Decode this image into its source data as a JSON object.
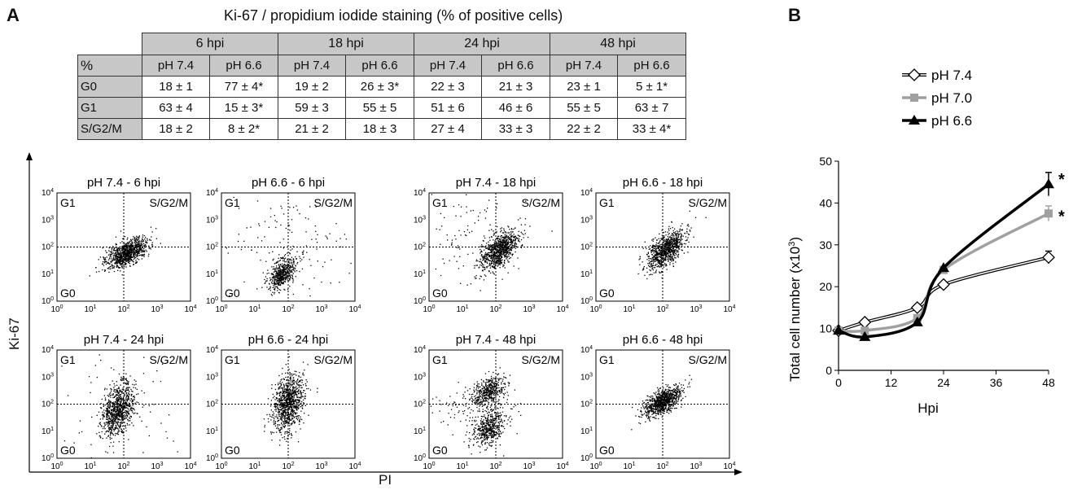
{
  "panel_a": {
    "letter": "A",
    "table": {
      "title": "Ki-67 / propidium iodide staining (% of positive cells)",
      "corner": "%",
      "groups": [
        "6 hpi",
        "18 hpi",
        "24 hpi",
        "48 hpi"
      ],
      "subheaders": [
        "pH 7.4",
        "pH 6.6",
        "pH 7.4",
        "pH 6.6",
        "pH 7.4",
        "pH 6.6",
        "pH 7.4",
        "pH 6.6"
      ],
      "rows": [
        {
          "label": "G0",
          "cells": [
            "18 ± 1",
            "77 ± 4*",
            "19 ± 2",
            "26 ± 3*",
            "22 ± 3",
            "21 ± 3",
            "23 ± 1",
            "5 ± 1*"
          ]
        },
        {
          "label": "G1",
          "cells": [
            "63 ± 4",
            "15 ± 3*",
            "59 ± 3",
            "55 ± 5",
            "51 ± 6",
            "46 ± 6",
            "55 ± 5",
            "63 ± 7"
          ]
        },
        {
          "label": "S/G2/M",
          "cells": [
            "18 ± 2",
            "8 ± 2*",
            "21 ± 2",
            "18 ± 3",
            "27 ± 4",
            "33 ± 3",
            "22 ± 2",
            "33 ± 4*"
          ]
        }
      ]
    },
    "flow": {
      "y_label": "Ki-67",
      "x_label": "PI",
      "quadrant_labels": {
        "tl": "G1",
        "tr": "S/G2/M",
        "bl": "G0"
      },
      "tick_base": "10",
      "tick_exponents": [
        "0",
        "1",
        "2",
        "3",
        "4"
      ],
      "plots": [
        {
          "title": "pH 7.4 - 6 hpi"
        },
        {
          "title": "pH 6.6 - 6 hpi"
        },
        {
          "title": "pH 7.4 - 18 hpi"
        },
        {
          "title": "pH 6.6 - 18 hpi"
        },
        {
          "title": "pH 7.4 - 24 hpi"
        },
        {
          "title": "pH 6.6 - 24 hpi"
        },
        {
          "title": "pH 7.4 - 48 hpi"
        },
        {
          "title": "pH 6.6 - 48 hpi"
        }
      ]
    }
  },
  "panel_b": {
    "letter": "B",
    "colors": {
      "ph74": "#000000",
      "ph70": "#a0a0a0",
      "ph66": "#000000"
    }
  },
  "chart_data": {
    "type": "line",
    "title": "",
    "xlabel": "Hpi",
    "ylabel": "Total cell number (x10",
    "ylabel_sup": "3",
    "ylabel_close": ")",
    "xlim": [
      0,
      48
    ],
    "ylim": [
      0,
      50
    ],
    "x_ticks": [
      "0",
      "12",
      "24",
      "36",
      "48"
    ],
    "y_ticks": [
      "0",
      "10",
      "20",
      "30",
      "40",
      "50"
    ],
    "grid": false,
    "legend_position": "top-left",
    "x": [
      0,
      6,
      18,
      24,
      48
    ],
    "series": [
      {
        "name": "pH 7.4",
        "marker": "diamond",
        "values": [
          9.5,
          11.5,
          15,
          20.5,
          27
        ],
        "errors": [
          0.5,
          0.6,
          0.6,
          0.6,
          1.5
        ]
      },
      {
        "name": "pH 7.0",
        "marker": "square",
        "values": [
          9.5,
          9.5,
          12.5,
          24,
          37.5
        ],
        "errors": [
          0.5,
          0.5,
          0.6,
          0.8,
          1.8
        ]
      },
      {
        "name": "pH 6.6",
        "marker": "triangle",
        "values": [
          9.5,
          8,
          11.5,
          24.5,
          44.5
        ],
        "errors": [
          0.5,
          0.5,
          0.6,
          0.8,
          2.8
        ]
      }
    ],
    "annotations": [
      "*",
      "*"
    ]
  }
}
